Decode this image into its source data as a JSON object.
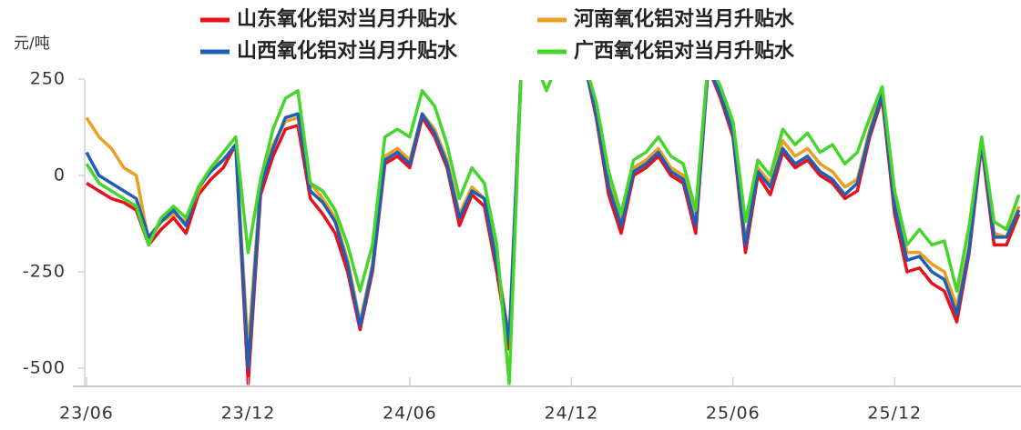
{
  "chart_data": {
    "type": "line",
    "y_axis_label": "元/吨",
    "categories": [
      "23/06",
      null,
      null,
      null,
      null,
      null,
      null,
      null,
      null,
      null,
      null,
      null,
      null,
      "23/12",
      null,
      null,
      null,
      null,
      null,
      null,
      null,
      null,
      null,
      null,
      null,
      null,
      "24/06",
      null,
      null,
      null,
      null,
      null,
      null,
      null,
      null,
      null,
      null,
      null,
      null,
      "24/12",
      null,
      null,
      null,
      null,
      null,
      null,
      null,
      null,
      null,
      null,
      null,
      null,
      "25/06",
      null,
      null,
      null,
      null,
      null,
      null,
      null,
      null,
      null,
      null,
      null,
      null,
      "25/12",
      null,
      null,
      null,
      null,
      null,
      null,
      null,
      null,
      null,
      null
    ],
    "series": [
      {
        "name": "山东氧化铝对当月升贴水",
        "color": "#e8101a",
        "values": [
          -20,
          -40,
          -60,
          -70,
          -90,
          -180,
          -140,
          -110,
          -150,
          -50,
          -10,
          20,
          80,
          -540,
          -50,
          50,
          120,
          130,
          -60,
          -100,
          -150,
          -250,
          -400,
          -250,
          30,
          50,
          20,
          150,
          100,
          20,
          -130,
          -50,
          -80,
          -250,
          -450,
          300,
          300,
          300,
          300,
          300,
          300,
          150,
          -50,
          -150,
          0,
          20,
          50,
          0,
          -20,
          -150,
          280,
          200,
          100,
          -200,
          0,
          -50,
          60,
          20,
          40,
          0,
          -20,
          -60,
          -40,
          100,
          200,
          -100,
          -250,
          -240,
          -280,
          -300,
          -380,
          -200,
          80,
          -180,
          -180,
          -100
        ]
      },
      {
        "name": "河南氧化铝对当月升贴水",
        "color": "#e8a020",
        "values": [
          150,
          100,
          70,
          20,
          0,
          -170,
          -120,
          -100,
          -120,
          -40,
          20,
          40,
          80,
          -450,
          -20,
          80,
          140,
          150,
          -20,
          -60,
          -110,
          -220,
          -380,
          -230,
          50,
          70,
          40,
          160,
          120,
          40,
          -100,
          -30,
          -60,
          -220,
          -420,
          300,
          300,
          300,
          300,
          300,
          300,
          170,
          -20,
          -120,
          20,
          40,
          70,
          20,
          0,
          -120,
          280,
          210,
          120,
          -170,
          20,
          -20,
          90,
          50,
          70,
          30,
          10,
          -30,
          -10,
          120,
          220,
          -60,
          -200,
          -200,
          -230,
          -250,
          -340,
          -180,
          90,
          -150,
          -160,
          -80
        ]
      },
      {
        "name": "山西氧化铝对当月升贴水",
        "color": "#1f5fb5",
        "values": [
          60,
          0,
          -20,
          -40,
          -60,
          -160,
          -120,
          -90,
          -130,
          -30,
          10,
          40,
          80,
          -500,
          -30,
          70,
          150,
          160,
          -40,
          -70,
          -120,
          -230,
          -390,
          -240,
          40,
          60,
          30,
          160,
          110,
          30,
          -110,
          -40,
          -60,
          -230,
          -430,
          300,
          300,
          300,
          300,
          300,
          300,
          160,
          -30,
          -130,
          10,
          30,
          60,
          10,
          -10,
          -130,
          280,
          210,
          110,
          -180,
          10,
          -30,
          70,
          30,
          50,
          10,
          -10,
          -50,
          -20,
          110,
          210,
          -80,
          -220,
          -210,
          -250,
          -270,
          -360,
          -190,
          90,
          -160,
          -160,
          -90
        ]
      },
      {
        "name": "广西氧化铝对当月升贴水",
        "color": "#44d62c",
        "values": [
          30,
          -20,
          -40,
          -60,
          -80,
          -180,
          -110,
          -80,
          -110,
          -30,
          20,
          60,
          100,
          -200,
          -10,
          120,
          200,
          220,
          -20,
          -40,
          -90,
          -180,
          -300,
          -180,
          100,
          120,
          100,
          220,
          180,
          80,
          -60,
          20,
          -20,
          -180,
          -540,
          300,
          300,
          220,
          300,
          300,
          300,
          190,
          10,
          -100,
          40,
          60,
          100,
          50,
          30,
          -90,
          300,
          230,
          140,
          -120,
          40,
          0,
          120,
          80,
          110,
          60,
          80,
          30,
          60,
          150,
          230,
          -40,
          -180,
          -140,
          -180,
          -170,
          -300,
          -130,
          100,
          -120,
          -140,
          -50
        ]
      }
    ],
    "ylim": [
      -550,
      250
    ],
    "yticks": [
      -500,
      -250,
      0,
      250
    ],
    "grid": false
  }
}
